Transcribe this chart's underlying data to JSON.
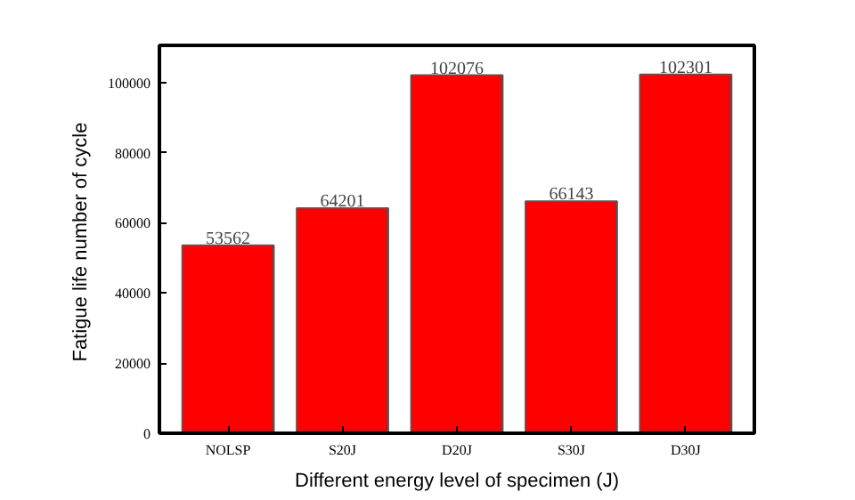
{
  "chart_data": {
    "type": "bar",
    "xlabel": "Different energy level of specimen (J)",
    "ylabel": "Fatigue life  number of cycle",
    "categories": [
      "NOLSP",
      "S20J",
      "D20J",
      "S30J",
      "D30J"
    ],
    "values": [
      53562,
      64201,
      102076,
      66143,
      102301
    ],
    "color": "#ff0000",
    "data_labels": true,
    "ylim": [
      0,
      110600
    ],
    "yticks": [
      0,
      20000,
      40000,
      60000,
      80000,
      100000
    ],
    "grid": false
  }
}
